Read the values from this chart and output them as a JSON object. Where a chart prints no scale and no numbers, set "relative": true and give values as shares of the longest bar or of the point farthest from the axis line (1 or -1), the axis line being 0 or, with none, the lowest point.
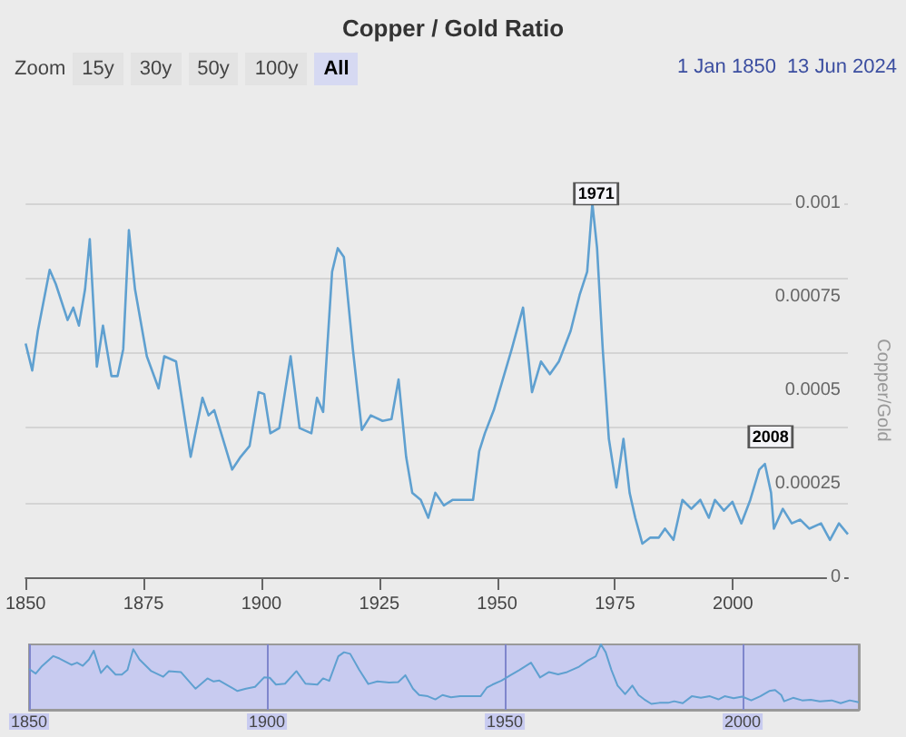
{
  "chart_data": [
    {
      "type": "line",
      "title": "Copper / Gold Ratio",
      "ylabel": "Copper/Gold",
      "annotations": [
        "Zoom",
        "15y",
        "30y",
        "50y",
        "100y",
        "All",
        "1 Jan 1850",
        "13 Jun 2024",
        {
          "text": "1971",
          "x": 1971,
          "y": 0.00088
        },
        {
          "text": "2008",
          "x": 2008,
          "y": 0.00023
        }
      ],
      "x": [
        1850,
        1851.4,
        1852.6,
        1855.1,
        1856.4,
        1858.9,
        1860.1,
        1861.3,
        1862.6,
        1863.6,
        1865.1,
        1866.4,
        1868.2,
        1869.5,
        1870.7,
        1871.9,
        1873.2,
        1875.7,
        1878.2,
        1879.4,
        1881.9,
        1885,
        1887.5,
        1888.8,
        1890,
        1893.8,
        1895.6,
        1897.5,
        1899.4,
        1900.6,
        1901.9,
        1903.8,
        1906.2,
        1908.1,
        1910.6,
        1911.8,
        1913.1,
        1915,
        1916.2,
        1917.5,
        1919.4,
        1921.3,
        1923.2,
        1925.7,
        1927.6,
        1929.1,
        1930.7,
        1932,
        1933.8,
        1935.4,
        1936.9,
        1938.7,
        1940.6,
        1944.9,
        1946.2,
        1947.4,
        1949.3,
        1951.2,
        1953.1,
        1955.5,
        1957.4,
        1959.3,
        1961.2,
        1963.1,
        1965.6,
        1967.5,
        1969.1,
        1970.2,
        1971.2,
        1972.4,
        1973.7,
        1975.3,
        1976.8,
        1978.1,
        1979.3,
        1980.8,
        1982.5,
        1984.3,
        1985.6,
        1987.4,
        1989.3,
        1991.2,
        1993.1,
        1994.9,
        1996.2,
        1998.1,
        1999.9,
        2001.8,
        2003.7,
        2005.6,
        2006.8,
        2008.1,
        2008.7,
        2010.6,
        2012.5,
        2014.3,
        2016.2,
        2018.7,
        2020.6,
        2022.5,
        2024.4
      ],
      "series": [
        {
          "color": "#5fa0d0",
          "values": [
            0.000625,
            0.000553,
            0.000659,
            0.000822,
            0.000784,
            0.000688,
            0.000721,
            0.000673,
            0.00077,
            0.000904,
            0.000563,
            0.000673,
            0.000538,
            0.000538,
            0.00061,
            0.000928,
            0.00077,
            0.000591,
            0.000505,
            0.000591,
            0.000577,
            0.000322,
            0.00048,
            0.000433,
            0.000447,
            0.000288,
            0.000322,
            0.000351,
            0.000495,
            0.00049,
            0.000385,
            0.000399,
            0.000591,
            0.000399,
            0.000385,
            0.00048,
            0.000442,
            0.000817,
            0.00088,
            0.000856,
            0.00061,
            0.000394,
            0.000433,
            0.000418,
            0.000423,
            0.000529,
            0.000322,
            0.000226,
            0.000207,
            0.000159,
            0.000226,
            0.000192,
            0.000207,
            0.000207,
            0.000337,
            0.000385,
            0.000447,
            0.000529,
            0.00061,
            0.000721,
            0.000495,
            0.000577,
            0.000543,
            0.000577,
            0.000659,
            0.000755,
            0.000817,
            0.001,
            0.00088,
            0.00061,
            0.00037,
            0.00024,
            0.00037,
            0.000226,
            0.000159,
            9e-05,
            0.000106,
            0.000106,
            0.00013,
            0.0001,
            0.000207,
            0.000183,
            0.000207,
            0.000159,
            0.000207,
            0.000178,
            0.000202,
            0.000144,
            0.000207,
            0.000288,
            0.000303,
            0.000226,
            0.00013,
            0.000183,
            0.000144,
            0.000154,
            0.00013,
            0.000144,
            0.0001,
            0.000144,
            0.000115
          ]
        }
      ],
      "xlim": [
        1850,
        2024.4
      ],
      "xticks": [
        1850,
        1875,
        1900,
        1925,
        1950,
        1975,
        2000
      ],
      "ylim": [
        0,
        0.001
      ],
      "yticks": [
        0,
        0.00025,
        0.0005,
        0.00075,
        0.001
      ],
      "grid": "y",
      "marker": "none"
    },
    {
      "type": "line",
      "x": [
        1850,
        1851.4,
        1852.6,
        1855.1,
        1856.4,
        1858.9,
        1860.1,
        1861.3,
        1862.6,
        1863.6,
        1865.1,
        1866.4,
        1868.2,
        1869.5,
        1870.7,
        1871.9,
        1873.2,
        1875.7,
        1878.2,
        1879.4,
        1881.9,
        1885,
        1887.5,
        1888.8,
        1890,
        1893.8,
        1895.6,
        1897.5,
        1899.4,
        1900.6,
        1901.9,
        1903.8,
        1906.2,
        1908.1,
        1910.6,
        1911.8,
        1913.1,
        1915,
        1916.2,
        1917.5,
        1919.4,
        1921.3,
        1923.2,
        1925.7,
        1927.6,
        1929.1,
        1930.7,
        1932,
        1933.8,
        1935.4,
        1936.9,
        1938.7,
        1940.6,
        1944.9,
        1946.2,
        1947.4,
        1949.3,
        1951.2,
        1953.1,
        1955.5,
        1957.4,
        1959.3,
        1961.2,
        1963.1,
        1965.6,
        1967.5,
        1969.1,
        1970.2,
        1971.2,
        1972.4,
        1973.7,
        1975.3,
        1976.8,
        1978.1,
        1979.3,
        1980.8,
        1982.5,
        1984.3,
        1985.6,
        1987.4,
        1989.3,
        1991.2,
        1993.1,
        1994.9,
        1996.2,
        1998.1,
        1999.9,
        2001.8,
        2003.7,
        2005.6,
        2006.8,
        2008.1,
        2008.7,
        2010.6,
        2012.5,
        2014.3,
        2016.2,
        2018.7,
        2020.6,
        2022.5,
        2024.4
      ],
      "series": [
        {
          "color": "#5fa0d0",
          "values": [
            0.625,
            0.553,
            0.659,
            0.822,
            0.784,
            0.688,
            0.721,
            0.673,
            0.77,
            0.904,
            0.563,
            0.673,
            0.538,
            0.538,
            0.61,
            0.928,
            0.77,
            0.591,
            0.505,
            0.591,
            0.577,
            0.322,
            0.48,
            0.433,
            0.447,
            0.288,
            0.322,
            0.351,
            0.495,
            0.49,
            0.385,
            0.399,
            0.591,
            0.399,
            0.385,
            0.48,
            0.442,
            0.817,
            0.88,
            0.856,
            0.61,
            0.394,
            0.433,
            0.418,
            0.423,
            0.529,
            0.322,
            0.226,
            0.207,
            0.159,
            0.226,
            0.192,
            0.207,
            0.207,
            0.337,
            0.385,
            0.447,
            0.529,
            0.61,
            0.721,
            0.495,
            0.577,
            0.543,
            0.577,
            0.659,
            0.755,
            0.817,
            1,
            0.88,
            0.61,
            0.37,
            0.24,
            0.37,
            0.226,
            0.159,
            0.09,
            0.106,
            0.106,
            0.13,
            0.1,
            0.207,
            0.183,
            0.207,
            0.159,
            0.207,
            0.178,
            0.202,
            0.144,
            0.207,
            0.288,
            0.303,
            0.226,
            0.13,
            0.183,
            0.144,
            0.154,
            0.13,
            0.144,
            0.1,
            0.144,
            0.115
          ]
        }
      ],
      "xlim": [
        1850,
        2024.4
      ],
      "xticks": [
        1850,
        1900,
        1950,
        2000
      ],
      "relative": true,
      "tick_labels": "x",
      "grid": "x",
      "marker": "none"
    }
  ]
}
